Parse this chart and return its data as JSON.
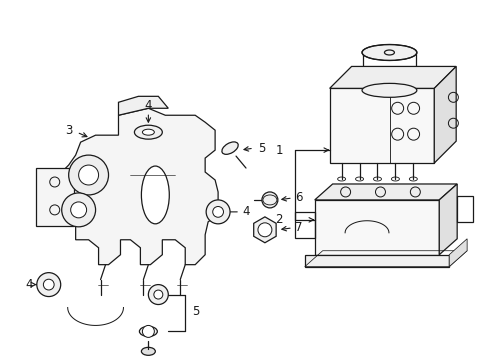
{
  "bg_color": "#ffffff",
  "line_color": "#1a1a1a",
  "label_color": "#000000",
  "fig_width": 4.89,
  "fig_height": 3.6
}
